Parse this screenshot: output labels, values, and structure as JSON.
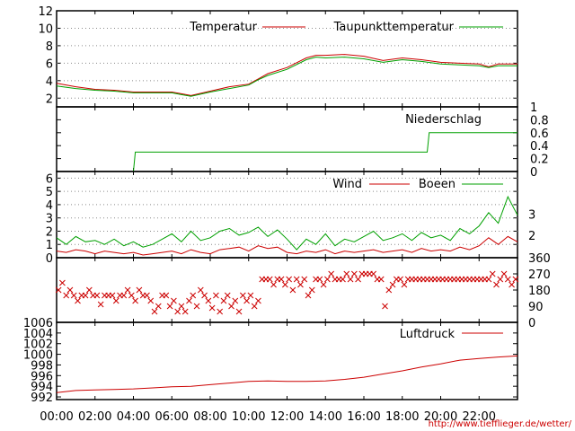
{
  "x_axis": {
    "ticks": [
      "00:00",
      "02:00",
      "04:00",
      "06:00",
      "08:00",
      "10:00",
      "12:00",
      "14:00",
      "16:00",
      "18:00",
      "20:00",
      "22:00"
    ],
    "range_hours": [
      0,
      24
    ]
  },
  "source_url": "http://www.tiefflieger.de/wetter/",
  "colors": {
    "red": "#cc0000",
    "green": "#00a000",
    "grid": "#8a8a8a"
  },
  "chart_data": [
    {
      "type": "line",
      "id": "temp",
      "ylim": [
        1,
        12
      ],
      "yticks": [
        2,
        4,
        6,
        8,
        10,
        12
      ],
      "grid": true,
      "legend_placement": "top",
      "series": [
        {
          "name": "Temperatur",
          "color": "#cc0000",
          "x": [
            0,
            1,
            2,
            3,
            4,
            5,
            6,
            6.5,
            7,
            8,
            9,
            10,
            10.5,
            11,
            12,
            13,
            13.5,
            14,
            15,
            16,
            17,
            18,
            19,
            20,
            21,
            22,
            22.5,
            23,
            24
          ],
          "y": [
            3.7,
            3.3,
            3.0,
            2.9,
            2.7,
            2.7,
            2.7,
            2.5,
            2.3,
            2.8,
            3.3,
            3.6,
            4.2,
            4.8,
            5.5,
            6.6,
            6.9,
            6.9,
            7.0,
            6.8,
            6.3,
            6.6,
            6.4,
            6.1,
            6.0,
            5.9,
            5.6,
            5.9,
            5.9
          ]
        },
        {
          "name": "Taupunkttemperatur",
          "color": "#00a000",
          "x": [
            0,
            1,
            2,
            3,
            4,
            5,
            6,
            6.5,
            7,
            8,
            9,
            10,
            10.5,
            11,
            12,
            13,
            13.5,
            14,
            15,
            16,
            17,
            18,
            19,
            20,
            21,
            22,
            22.5,
            23,
            24
          ],
          "y": [
            3.4,
            3.1,
            2.9,
            2.8,
            2.6,
            2.6,
            2.6,
            2.4,
            2.2,
            2.7,
            3.1,
            3.5,
            4.1,
            4.6,
            5.3,
            6.4,
            6.7,
            6.6,
            6.7,
            6.5,
            6.1,
            6.4,
            6.2,
            5.9,
            5.8,
            5.7,
            5.5,
            5.7,
            5.7
          ]
        }
      ]
    },
    {
      "type": "line",
      "id": "rain",
      "ylim": [
        0,
        1
      ],
      "yticks": [
        "0",
        "0.2",
        "0.4",
        "0.6",
        "0.8",
        "1"
      ],
      "series": [
        {
          "name": "Niederschlag",
          "color": "#00a000",
          "x": [
            0,
            4,
            4.1,
            19.3,
            19.4,
            24
          ],
          "y": [
            0,
            0,
            0.3,
            0.3,
            0.6,
            0.6
          ]
        }
      ]
    },
    {
      "type": "line",
      "id": "wind",
      "ylim": [
        0,
        6.5
      ],
      "yticks": [
        0,
        1,
        2,
        3,
        4,
        5,
        6
      ],
      "y2ticks": [
        2,
        3
      ],
      "grid": true,
      "series": [
        {
          "name": "Wind",
          "color": "#cc0000",
          "x": [
            0,
            0.5,
            1,
            1.5,
            2,
            2.5,
            3,
            3.5,
            4,
            4.5,
            5,
            5.5,
            6,
            6.5,
            7,
            7.5,
            8,
            8.5,
            9,
            9.5,
            10,
            10.5,
            11,
            11.5,
            12,
            12.5,
            13,
            13.5,
            14,
            14.5,
            15,
            15.5,
            16,
            16.5,
            17,
            17.5,
            18,
            18.5,
            19,
            19.5,
            20,
            20.5,
            21,
            21.5,
            22,
            22.5,
            23,
            23.5,
            24
          ],
          "y": [
            0.5,
            0.4,
            0.6,
            0.5,
            0.3,
            0.5,
            0.4,
            0.3,
            0.4,
            0.2,
            0.3,
            0.4,
            0.5,
            0.3,
            0.6,
            0.4,
            0.3,
            0.6,
            0.7,
            0.8,
            0.5,
            0.9,
            0.7,
            0.8,
            0.4,
            0.3,
            0.5,
            0.4,
            0.6,
            0.3,
            0.5,
            0.4,
            0.5,
            0.6,
            0.4,
            0.5,
            0.6,
            0.4,
            0.7,
            0.5,
            0.6,
            0.5,
            0.8,
            0.6,
            0.9,
            1.5,
            1.0,
            1.6,
            1.2
          ]
        },
        {
          "name": "Boeen",
          "color": "#00a000",
          "x": [
            0,
            0.5,
            1,
            1.5,
            2,
            2.5,
            3,
            3.5,
            4,
            4.5,
            5,
            5.5,
            6,
            6.5,
            7,
            7.5,
            8,
            8.5,
            9,
            9.5,
            10,
            10.5,
            11,
            11.5,
            12,
            12.5,
            13,
            13.5,
            14,
            14.5,
            15,
            15.5,
            16,
            16.5,
            17,
            17.5,
            18,
            18.5,
            19,
            19.5,
            20,
            20.5,
            21,
            21.5,
            22,
            22.5,
            23,
            23.5,
            24
          ],
          "y": [
            1.5,
            1.0,
            1.6,
            1.2,
            1.3,
            1.0,
            1.4,
            0.9,
            1.2,
            0.8,
            1.0,
            1.4,
            1.8,
            1.2,
            2.0,
            1.3,
            1.5,
            2.0,
            2.2,
            1.7,
            1.9,
            2.3,
            1.6,
            2.1,
            1.4,
            0.6,
            1.4,
            1.0,
            1.8,
            0.9,
            1.4,
            1.2,
            1.6,
            2.0,
            1.3,
            1.5,
            1.8,
            1.3,
            1.9,
            1.5,
            1.7,
            1.3,
            2.2,
            1.8,
            2.4,
            3.4,
            2.6,
            4.6,
            3.2
          ]
        }
      ]
    },
    {
      "type": "scatter",
      "id": "winddir",
      "ylim": [
        0,
        360
      ],
      "y2ticks": [
        0,
        90,
        180,
        270,
        360
      ],
      "color": "#cc0000",
      "x": [
        0.1,
        0.3,
        0.5,
        0.7,
        0.9,
        1.1,
        1.3,
        1.5,
        1.7,
        1.9,
        2.1,
        2.3,
        2.5,
        2.7,
        2.9,
        3.1,
        3.3,
        3.5,
        3.7,
        3.9,
        4.1,
        4.3,
        4.5,
        4.7,
        4.9,
        5.1,
        5.3,
        5.5,
        5.7,
        5.9,
        6.1,
        6.3,
        6.5,
        6.7,
        6.9,
        7.1,
        7.3,
        7.5,
        7.7,
        7.9,
        8.1,
        8.3,
        8.5,
        8.7,
        8.9,
        9.1,
        9.3,
        9.5,
        9.7,
        9.9,
        10.1,
        10.3,
        10.5,
        10.7,
        10.9,
        11.1,
        11.3,
        11.5,
        11.7,
        11.9,
        12.1,
        12.3,
        12.5,
        12.7,
        12.9,
        13.1,
        13.3,
        13.5,
        13.7,
        13.9,
        14.1,
        14.3,
        14.5,
        14.7,
        14.9,
        15.1,
        15.3,
        15.5,
        15.7,
        15.9,
        16.1,
        16.3,
        16.5,
        16.7,
        16.9,
        17.1,
        17.3,
        17.5,
        17.7,
        17.9,
        18.1,
        18.3,
        18.5,
        18.7,
        18.9,
        19.1,
        19.3,
        19.5,
        19.7,
        19.9,
        20.1,
        20.3,
        20.5,
        20.7,
        20.9,
        21.1,
        21.3,
        21.5,
        21.7,
        21.9,
        22.1,
        22.3,
        22.5,
        22.7,
        22.9,
        23.1,
        23.3,
        23.5,
        23.7,
        23.9
      ],
      "y": [
        180,
        220,
        150,
        180,
        150,
        120,
        150,
        150,
        180,
        150,
        150,
        100,
        150,
        150,
        150,
        120,
        150,
        150,
        180,
        150,
        120,
        180,
        150,
        150,
        120,
        60,
        90,
        150,
        150,
        90,
        120,
        60,
        90,
        60,
        120,
        150,
        90,
        180,
        150,
        120,
        80,
        150,
        60,
        120,
        150,
        90,
        120,
        60,
        150,
        120,
        150,
        90,
        120,
        240,
        240,
        240,
        210,
        240,
        240,
        210,
        240,
        180,
        240,
        210,
        240,
        150,
        180,
        240,
        240,
        210,
        240,
        270,
        240,
        240,
        240,
        270,
        240,
        270,
        240,
        270,
        270,
        270,
        270,
        240,
        240,
        90,
        180,
        210,
        240,
        240,
        210,
        240,
        240,
        240,
        240,
        240,
        240,
        240,
        240,
        240,
        240,
        240,
        240,
        240,
        240,
        240,
        240,
        240,
        240,
        240,
        240,
        240,
        240,
        270,
        210,
        240,
        270,
        240,
        210,
        240
      ]
    },
    {
      "type": "line",
      "id": "pressure",
      "ylim": [
        991.5,
        1006
      ],
      "yticks": [
        992,
        994,
        996,
        998,
        1000,
        1002,
        1004,
        1006
      ],
      "legend_placement": "top-right",
      "series": [
        {
          "name": "Luftdruck",
          "color": "#cc0000",
          "x": [
            0,
            1,
            2,
            3,
            4,
            5,
            6,
            7,
            8,
            9,
            10,
            11,
            12,
            13,
            14,
            15,
            16,
            17,
            18,
            19,
            20,
            21,
            22,
            23,
            24
          ],
          "y": [
            992.8,
            993.2,
            993.3,
            993.4,
            993.5,
            993.7,
            993.9,
            994.0,
            994.3,
            994.6,
            994.9,
            995.0,
            994.9,
            994.9,
            995.0,
            995.3,
            995.7,
            996.3,
            996.9,
            997.6,
            998.2,
            998.9,
            999.2,
            999.5,
            999.7
          ]
        }
      ]
    }
  ]
}
